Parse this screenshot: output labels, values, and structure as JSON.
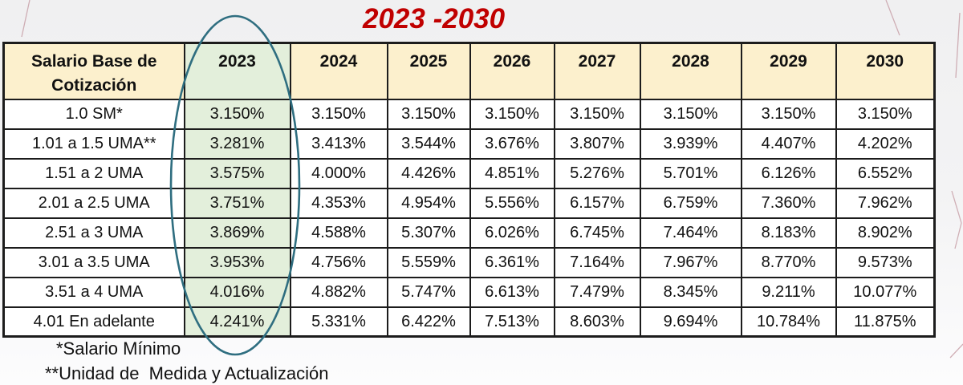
{
  "title": "2023 -2030",
  "table": {
    "row_header": "Salario Base de Cotización",
    "years": [
      "2023",
      "2024",
      "2025",
      "2026",
      "2027",
      "2028",
      "2029",
      "2030"
    ],
    "highlighted_year": "2023",
    "rows": [
      {
        "label": "1.0 SM*",
        "values": [
          "3.150%",
          "3.150%",
          "3.150%",
          "3.150%",
          "3.150%",
          "3.150%",
          "3.150%",
          "3.150%"
        ]
      },
      {
        "label": "1.01 a 1.5 UMA**",
        "values": [
          "3.281%",
          "3.413%",
          "3.544%",
          "3.676%",
          "3.807%",
          "3.939%",
          "4.407%",
          "4.202%"
        ]
      },
      {
        "label": "1.51 a 2 UMA",
        "values": [
          "3.575%",
          "4.000%",
          "4.426%",
          "4.851%",
          "5.276%",
          "5.701%",
          "6.126%",
          "6.552%"
        ]
      },
      {
        "label": "2.01 a 2.5 UMA",
        "values": [
          "3.751%",
          "4.353%",
          "4.954%",
          "5.556%",
          "6.157%",
          "6.759%",
          "7.360%",
          "7.962%"
        ]
      },
      {
        "label": "2.51 a 3 UMA",
        "values": [
          "3.869%",
          "4.588%",
          "5.307%",
          "6.026%",
          "6.745%",
          "7.464%",
          "8.183%",
          "8.902%"
        ]
      },
      {
        "label": "3.01 a 3.5 UMA",
        "values": [
          "3.953%",
          "4.756%",
          "5.559%",
          "6.361%",
          "7.164%",
          "7.967%",
          "8.770%",
          "9.573%"
        ]
      },
      {
        "label": "3.51 a 4 UMA",
        "values": [
          "4.016%",
          "4.882%",
          "5.747%",
          "6.613%",
          "7.479%",
          "8.345%",
          "9.211%",
          "10.077%"
        ]
      },
      {
        "label": "4.01 En adelante",
        "values": [
          "4.241%",
          "5.331%",
          "6.422%",
          "7.513%",
          "8.603%",
          "9.694%",
          "10.784%",
          "11.875%"
        ]
      }
    ]
  },
  "footnotes": {
    "salario_minimo": "*Salario Mínimo",
    "uma": "**Unidad de  Medida y Actualización"
  },
  "colors": {
    "title_red": "#c00000",
    "header_cream": "#fcf0cd",
    "highlight_green": "#e3efdb",
    "ellipse_teal": "#2f6e80",
    "border_black": "#1c1c1c",
    "decor_pink": "#c9a2aa",
    "background_gray": "#f1f1f2"
  }
}
